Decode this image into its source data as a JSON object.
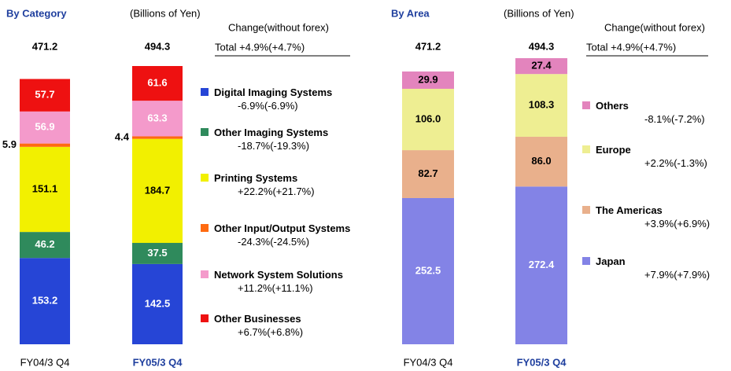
{
  "chart_data": [
    {
      "type": "stacked_bar",
      "title": "By Category",
      "subtitle": "(Billions of Yen)",
      "change_header": "Change(without forex)",
      "total_change": "Total  +4.9%(+4.7%)",
      "categories": [
        "FY04/3 Q4",
        "FY05/3 Q4"
      ],
      "totals": [
        471.2,
        494.3
      ],
      "series": [
        {
          "name": "Digital Imaging Systems",
          "color": "#2645d6",
          "label_color": "#ffffff",
          "change": "-6.9%(-6.9%)",
          "values": [
            153.2,
            142.5
          ]
        },
        {
          "name": "Other Imaging Systems",
          "color": "#2f8a5c",
          "label_color": "#ffffff",
          "change": "-18.7%(-19.3%)",
          "values": [
            46.2,
            37.5
          ]
        },
        {
          "name": "Printing Systems",
          "color": "#f2f000",
          "label_color": "#000000",
          "change": "+22.2%(+21.7%)",
          "values": [
            151.1,
            184.7
          ]
        },
        {
          "name": "Other Input/Output Systems",
          "color": "#ff6a10",
          "label_color": "#000000",
          "change": "-24.3%(-24.5%)",
          "values": [
            5.9,
            4.4
          ]
        },
        {
          "name": "Network System Solutions",
          "color": "#f49acb",
          "label_color": "#ffffff",
          "change": "+11.2%(+11.1%)",
          "values": [
            56.9,
            63.3
          ]
        },
        {
          "name": "Other Businesses",
          "color": "#ee1111",
          "label_color": "#ffffff",
          "change": "+6.7%(+6.8%)",
          "values": [
            57.7,
            61.6
          ]
        }
      ]
    },
    {
      "type": "stacked_bar",
      "title": "By Area",
      "subtitle": "(Billions of Yen)",
      "change_header": "Change(without forex)",
      "total_change": "Total  +4.9%(+4.7%)",
      "categories": [
        "FY04/3 Q4",
        "FY05/3 Q4"
      ],
      "totals": [
        471.2,
        494.3
      ],
      "series": [
        {
          "name": "Japan",
          "color": "#8383e6",
          "label_color": "#ffffff",
          "change": "+7.9%(+7.9%)",
          "values": [
            252.5,
            272.4
          ]
        },
        {
          "name": "The Americas",
          "color": "#e9b08c",
          "label_color": "#000000",
          "change": "+3.9%(+6.9%)",
          "values": [
            82.7,
            86.0
          ],
          "value_labels": [
            "82.7",
            "86.0"
          ]
        },
        {
          "name": "Europe",
          "color": "#eeee92",
          "label_color": "#000000",
          "change": "+2.2%(-1.3%)",
          "values": [
            106.0,
            108.3
          ],
          "value_labels": [
            "106.0",
            "108.3"
          ]
        },
        {
          "name": "Others",
          "color": "#e384bd",
          "label_color": "#000000",
          "change": "-8.1%(-7.2%)",
          "values": [
            29.9,
            27.4
          ]
        }
      ]
    }
  ]
}
